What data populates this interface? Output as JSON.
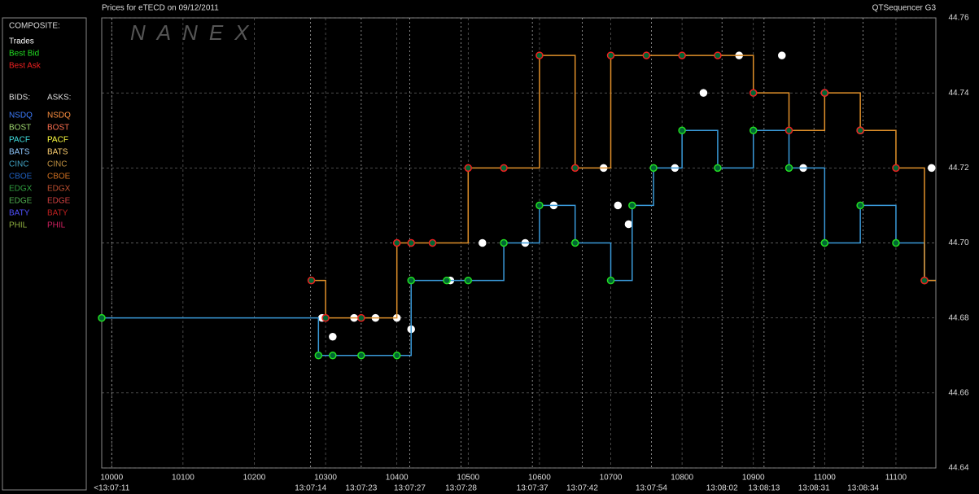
{
  "chart_data": {
    "type": "line",
    "title": "Prices for  eTECD  on  09/12/2011",
    "app_name": "QTSequencer G3",
    "watermark": "NANEX",
    "legend_title": "COMPOSITE:",
    "bids_title": "BIDS:",
    "asks_title": "ASKS:",
    "bids_legend": [
      {
        "name": "NSDQ",
        "color": "#3d7dff"
      },
      {
        "name": "BOST",
        "color": "#a0d870"
      },
      {
        "name": "PACF",
        "color": "#40e0e0"
      },
      {
        "name": "BATS",
        "color": "#8fc8ff"
      },
      {
        "name": "CINC",
        "color": "#40a0c0"
      },
      {
        "name": "CBOE",
        "color": "#2060c0"
      },
      {
        "name": "EDGX",
        "color": "#30a040"
      },
      {
        "name": "EDGE",
        "color": "#50b050"
      },
      {
        "name": "BATY",
        "color": "#5050ff"
      },
      {
        "name": "PHIL",
        "color": "#90b040"
      }
    ],
    "asks_legend": [
      {
        "name": "NSDQ",
        "color": "#ff9040"
      },
      {
        "name": "BOST",
        "color": "#ff7050"
      },
      {
        "name": "PACF",
        "color": "#ffff40"
      },
      {
        "name": "BATS",
        "color": "#ffd070"
      },
      {
        "name": "CINC",
        "color": "#c09040"
      },
      {
        "name": "CBOE",
        "color": "#d07020"
      },
      {
        "name": "EDGX",
        "color": "#c05030"
      },
      {
        "name": "EDGE",
        "color": "#d04040"
      },
      {
        "name": "BATY",
        "color": "#c02020"
      },
      {
        "name": "PHIL",
        "color": "#d02060"
      }
    ],
    "xlim": [
      9986,
      11156
    ],
    "ylim": [
      44.64,
      44.76
    ],
    "xticks": [
      10000,
      10100,
      10200,
      10300,
      10400,
      10500,
      10600,
      10700,
      10800,
      10900,
      11000,
      11100
    ],
    "yticks": [
      44.64,
      44.66,
      44.68,
      {
        "value": 44.7,
        "label": "44.70"
      },
      44.72,
      44.74,
      44.76
    ],
    "x2ticks": [
      {
        "value": 10000,
        "label": "<13:07:11"
      },
      {
        "value": 10279,
        "label": "13:07:14"
      },
      {
        "value": 10350,
        "label": "13:07:23"
      },
      {
        "value": 10418,
        "label": "13:07:27"
      },
      {
        "value": 10490,
        "label": "13:07:28"
      },
      {
        "value": 10590,
        "label": "13:07:37"
      },
      {
        "value": 10660,
        "label": "13:07:42"
      },
      {
        "value": 10757,
        "label": "13:07:54"
      },
      {
        "value": 10856,
        "label": "13:08:02"
      },
      {
        "value": 10915,
        "label": "13:08:13"
      },
      {
        "value": 10985,
        "label": "13:08:31"
      },
      {
        "value": 11054,
        "label": "13:08:34"
      }
    ],
    "grid": true,
    "series": [
      {
        "name": "Trades",
        "color": "#ffffff",
        "line": false,
        "x": [
          10295,
          10310,
          10340,
          10370,
          10400,
          10420,
          10475,
          10520,
          10580,
          10620,
          10690,
          10710,
          10725,
          10790,
          10830,
          10880,
          10940,
          10970,
          11000,
          11050,
          11150
        ],
        "values": [
          44.68,
          44.675,
          44.68,
          44.68,
          44.68,
          44.677,
          44.69,
          44.7,
          44.7,
          44.71,
          44.72,
          44.71,
          44.705,
          44.72,
          44.74,
          44.75,
          44.75,
          44.72,
          44.74,
          44.73,
          44.72
        ]
      },
      {
        "name": "Best Bid",
        "color": "#22dd22",
        "line": true,
        "line_color": "#3a9ad9",
        "x": [
          9986,
          10290,
          10310,
          10350,
          10400,
          10420,
          10470,
          10500,
          10550,
          10600,
          10650,
          10700,
          10730,
          10760,
          10800,
          10850,
          10900,
          10950,
          11000,
          11050,
          11100,
          11140
        ],
        "values": [
          44.68,
          44.67,
          44.67,
          44.67,
          44.67,
          44.69,
          44.69,
          44.69,
          44.7,
          44.71,
          44.7,
          44.69,
          44.71,
          44.72,
          44.73,
          44.72,
          44.73,
          44.72,
          44.7,
          44.71,
          44.7,
          44.69
        ]
      },
      {
        "name": "Best Ask",
        "color": "#ee2020",
        "line": true,
        "line_color": "#e0902a",
        "x": [
          10280,
          10300,
          10350,
          10400,
          10420,
          10450,
          10500,
          10550,
          10600,
          10650,
          10700,
          10750,
          10800,
          10850,
          10900,
          10950,
          11000,
          11050,
          11100,
          11140
        ],
        "values": [
          44.69,
          44.68,
          44.68,
          44.7,
          44.7,
          44.7,
          44.72,
          44.72,
          44.75,
          44.72,
          44.75,
          44.75,
          44.75,
          44.75,
          44.74,
          44.73,
          44.74,
          44.73,
          44.72,
          44.69
        ]
      }
    ]
  }
}
